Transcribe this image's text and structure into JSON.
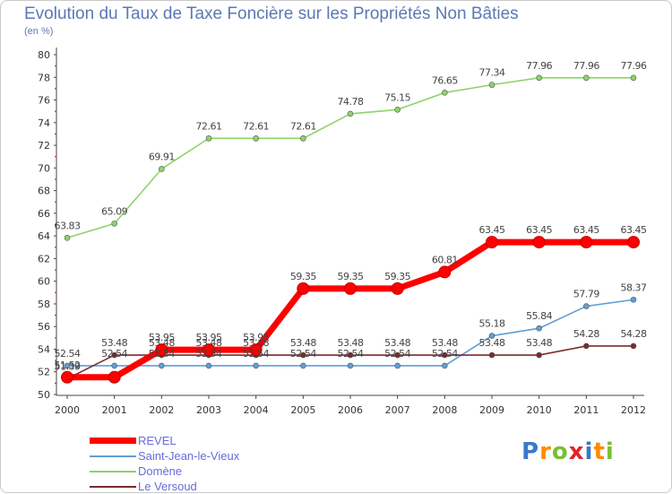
{
  "title": "Evolution du Taux de Taxe Foncière sur les Propriétés Non Bâties",
  "unit_label": "(en %)",
  "logo_text": "Proxiti",
  "chart_data": {
    "type": "line",
    "x": [
      "2000",
      "2001",
      "2002",
      "2003",
      "2004",
      "2005",
      "2006",
      "2007",
      "2008",
      "2009",
      "2010",
      "2011",
      "2012"
    ],
    "ylim": [
      50,
      80
    ],
    "yticks": [
      50,
      52,
      54,
      56,
      58,
      60,
      62,
      64,
      66,
      68,
      70,
      72,
      74,
      76,
      78,
      80
    ],
    "grid": false,
    "legend_position": "bottom-left",
    "series": [
      {
        "name": "REVEL",
        "color": "#ff0000",
        "values": [
          51.52,
          51.52,
          53.95,
          53.95,
          53.95,
          59.35,
          59.35,
          59.35,
          60.81,
          63.45,
          63.45,
          63.45,
          63.45
        ],
        "labels": [
          "51.52",
          "",
          "53.95",
          "53.95",
          "53.95",
          "59.35",
          "59.35",
          "59.35",
          "60.81",
          "63.45",
          "63.45",
          "63.45",
          "63.45"
        ]
      },
      {
        "name": "Saint-Jean-le-Vieux",
        "color": "#5f9fd6",
        "values": [
          52.54,
          52.54,
          52.54,
          52.54,
          52.54,
          52.54,
          52.54,
          52.54,
          52.54,
          55.18,
          55.84,
          57.79,
          58.37
        ],
        "labels": [
          "52.54",
          "52.54",
          "52.54",
          "52.54",
          "52.54",
          "52.54",
          "52.54",
          "52.54",
          "52.54",
          "55.18",
          "55.84",
          "57.79",
          "58.37"
        ]
      },
      {
        "name": "Domène",
        "color": "#8ed36a",
        "values": [
          63.83,
          65.09,
          69.91,
          72.61,
          72.61,
          72.61,
          74.78,
          75.15,
          76.65,
          77.34,
          77.96,
          77.96,
          77.96
        ],
        "labels": [
          "63.83",
          "65.09",
          "69.91",
          "72.61",
          "72.61",
          "72.61",
          "74.78",
          "75.15",
          "76.65",
          "77.34",
          "77.96",
          "77.96",
          "77.96"
        ]
      },
      {
        "name": "Le Versoud",
        "color": "#7a2b2b",
        "values": [
          51.39,
          53.48,
          53.48,
          53.48,
          53.48,
          53.48,
          53.48,
          53.48,
          53.48,
          53.48,
          53.48,
          54.28,
          54.28
        ],
        "labels": [
          "51.39",
          "53.48",
          "53.48",
          "53.48",
          "53.48",
          "53.48",
          "53.48",
          "53.48",
          "53.48",
          "53.48",
          "53.48",
          "54.28",
          "54.28"
        ]
      }
    ]
  }
}
